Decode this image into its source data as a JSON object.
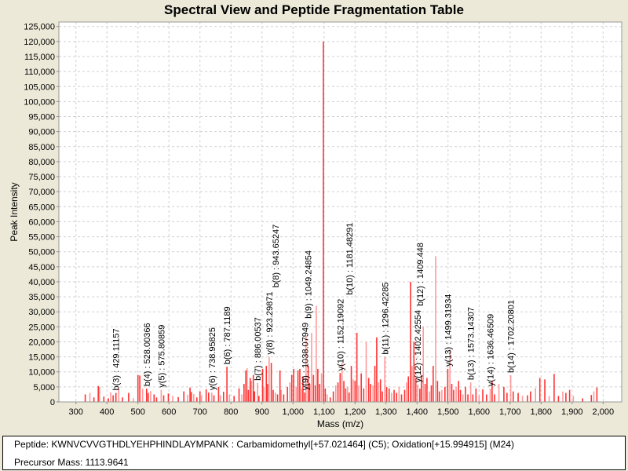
{
  "chart_data": {
    "type": "bar",
    "title": "Spectral View and Peptide Fragmentation Table",
    "xlabel": "Mass (m/z)",
    "ylabel": "Peak Intensity",
    "xlim": [
      245,
      2060
    ],
    "ylim": [
      0,
      126500
    ],
    "xticks": [
      300,
      400,
      500,
      600,
      700,
      800,
      900,
      1000,
      1100,
      1200,
      1300,
      1400,
      1500,
      1600,
      1700,
      1800,
      1900,
      2000
    ],
    "yticks": [
      0,
      5000,
      10000,
      15000,
      20000,
      25000,
      30000,
      35000,
      40000,
      45000,
      50000,
      55000,
      60000,
      65000,
      70000,
      75000,
      80000,
      85000,
      90000,
      95000,
      100000,
      105000,
      110000,
      115000,
      120000,
      125000
    ],
    "grid": true,
    "peak_color": "#ff3333",
    "peak_color_light": "#ff9999",
    "peaks": [
      [
        330,
        2500
      ],
      [
        345,
        3000
      ],
      [
        358,
        1500
      ],
      [
        372,
        5300
      ],
      [
        376,
        5000
      ],
      [
        390,
        1800
      ],
      [
        405,
        1200
      ],
      [
        412,
        3200
      ],
      [
        420,
        2200
      ],
      [
        429,
        3000
      ],
      [
        438,
        4500
      ],
      [
        450,
        1500
      ],
      [
        470,
        3000
      ],
      [
        485,
        1200
      ],
      [
        500,
        9000
      ],
      [
        506,
        8800
      ],
      [
        515,
        4400
      ],
      [
        528,
        4400
      ],
      [
        533,
        3000
      ],
      [
        541,
        3600
      ],
      [
        552,
        2500
      ],
      [
        560,
        1500
      ],
      [
        575,
        4000
      ],
      [
        583,
        2200
      ],
      [
        598,
        2800
      ],
      [
        612,
        2000
      ],
      [
        630,
        1600
      ],
      [
        648,
        3500
      ],
      [
        660,
        2400
      ],
      [
        668,
        4800
      ],
      [
        672,
        3300
      ],
      [
        680,
        2600
      ],
      [
        690,
        1500
      ],
      [
        700,
        3500
      ],
      [
        705,
        2200
      ],
      [
        720,
        4200
      ],
      [
        728,
        3100
      ],
      [
        738,
        3100
      ],
      [
        745,
        2200
      ],
      [
        760,
        5000
      ],
      [
        766,
        2200
      ],
      [
        776,
        3400
      ],
      [
        787,
        11700
      ],
      [
        795,
        2500
      ],
      [
        810,
        2000
      ],
      [
        826,
        4500
      ],
      [
        835,
        2500
      ],
      [
        842,
        6000
      ],
      [
        848,
        10500
      ],
      [
        852,
        11200
      ],
      [
        856,
        4000
      ],
      [
        862,
        8000
      ],
      [
        866,
        7000
      ],
      [
        872,
        9000
      ],
      [
        876,
        3500
      ],
      [
        886,
        6300
      ],
      [
        890,
        2000
      ],
      [
        902,
        11000
      ],
      [
        906,
        5000
      ],
      [
        914,
        12000
      ],
      [
        918,
        6000
      ],
      [
        923,
        15000
      ],
      [
        930,
        13000
      ],
      [
        936,
        4000
      ],
      [
        943,
        3100
      ],
      [
        950,
        2500
      ],
      [
        958,
        10500
      ],
      [
        962,
        4000
      ],
      [
        970,
        2500
      ],
      [
        982,
        5000
      ],
      [
        990,
        6500
      ],
      [
        996,
        9000
      ],
      [
        1002,
        11000
      ],
      [
        1010,
        5000
      ],
      [
        1016,
        10500
      ],
      [
        1022,
        11000
      ],
      [
        1028,
        4500
      ],
      [
        1032,
        8500
      ],
      [
        1038,
        3100
      ],
      [
        1042,
        22000
      ],
      [
        1049,
        12000
      ],
      [
        1054,
        6000
      ],
      [
        1060,
        23000
      ],
      [
        1066,
        9000
      ],
      [
        1072,
        5500
      ],
      [
        1075,
        32000
      ],
      [
        1080,
        11000
      ],
      [
        1086,
        6000
      ],
      [
        1092,
        9500
      ],
      [
        1098,
        120000
      ],
      [
        1104,
        4500
      ],
      [
        1110,
        2500
      ],
      [
        1120,
        1500
      ],
      [
        1130,
        3500
      ],
      [
        1138,
        5500
      ],
      [
        1145,
        6500
      ],
      [
        1152,
        9600
      ],
      [
        1158,
        13000
      ],
      [
        1164,
        7000
      ],
      [
        1170,
        4500
      ],
      [
        1176,
        5000
      ],
      [
        1181,
        3100
      ],
      [
        1188,
        12000
      ],
      [
        1194,
        7500
      ],
      [
        1200,
        7000
      ],
      [
        1206,
        23000
      ],
      [
        1212,
        5500
      ],
      [
        1220,
        9500
      ],
      [
        1228,
        4500
      ],
      [
        1236,
        20000
      ],
      [
        1244,
        8000
      ],
      [
        1250,
        6000
      ],
      [
        1258,
        5500
      ],
      [
        1264,
        12000
      ],
      [
        1270,
        21500
      ],
      [
        1276,
        6500
      ],
      [
        1282,
        7500
      ],
      [
        1288,
        3500
      ],
      [
        1296,
        15000
      ],
      [
        1302,
        5000
      ],
      [
        1310,
        4500
      ],
      [
        1318,
        3000
      ],
      [
        1326,
        4000
      ],
      [
        1334,
        3000
      ],
      [
        1342,
        5000
      ],
      [
        1350,
        2500
      ],
      [
        1360,
        4000
      ],
      [
        1366,
        6500
      ],
      [
        1372,
        8500
      ],
      [
        1379,
        40000
      ],
      [
        1384,
        12000
      ],
      [
        1390,
        20000
      ],
      [
        1396,
        8000
      ],
      [
        1402,
        5700
      ],
      [
        1409,
        4400
      ],
      [
        1414,
        9000
      ],
      [
        1420,
        25000
      ],
      [
        1426,
        6000
      ],
      [
        1432,
        8000
      ],
      [
        1440,
        3500
      ],
      [
        1446,
        5500
      ],
      [
        1452,
        12000
      ],
      [
        1460,
        48500
      ],
      [
        1466,
        7000
      ],
      [
        1472,
        3500
      ],
      [
        1480,
        4000
      ],
      [
        1490,
        5000
      ],
      [
        1499,
        11000
      ],
      [
        1506,
        17500
      ],
      [
        1512,
        6000
      ],
      [
        1518,
        4000
      ],
      [
        1526,
        5000
      ],
      [
        1534,
        7000
      ],
      [
        1540,
        4000
      ],
      [
        1548,
        2500
      ],
      [
        1556,
        5000
      ],
      [
        1564,
        2500
      ],
      [
        1573,
        6500
      ],
      [
        1580,
        2500
      ],
      [
        1590,
        4500
      ],
      [
        1600,
        2200
      ],
      [
        1612,
        4200
      ],
      [
        1624,
        2500
      ],
      [
        1636,
        4400
      ],
      [
        1642,
        7000
      ],
      [
        1650,
        2500
      ],
      [
        1664,
        6000
      ],
      [
        1680,
        5000
      ],
      [
        1690,
        3000
      ],
      [
        1702,
        8900
      ],
      [
        1710,
        3500
      ],
      [
        1726,
        3000
      ],
      [
        1740,
        2000
      ],
      [
        1756,
        2200
      ],
      [
        1766,
        3500
      ],
      [
        1782,
        4600
      ],
      [
        1796,
        8000
      ],
      [
        1812,
        7500
      ],
      [
        1826,
        2000
      ],
      [
        1842,
        9300
      ],
      [
        1856,
        2000
      ],
      [
        1870,
        3500
      ],
      [
        1880,
        3000
      ],
      [
        1892,
        4000
      ],
      [
        1904,
        2000
      ],
      [
        1934,
        1200
      ],
      [
        1962,
        2300
      ],
      [
        1970,
        3500
      ],
      [
        1980,
        4800
      ]
    ],
    "annotations": [
      {
        "mass": 429.11157,
        "intensity": 3000,
        "label": "b(3) : 429.11157"
      },
      {
        "mass": 528.00366,
        "intensity": 4400,
        "label": "b(4) : 528.00366"
      },
      {
        "mass": 575.80859,
        "intensity": 4000,
        "label": "y(5) : 575.80859"
      },
      {
        "mass": 738.95825,
        "intensity": 3100,
        "label": "y(6) : 738.95825"
      },
      {
        "mass": 787.1189,
        "intensity": 11700,
        "label": "b(6) : 787.1189"
      },
      {
        "mass": 886.00537,
        "intensity": 6300,
        "label": "b(7) : 886.00537"
      },
      {
        "mass": 923.29871,
        "intensity": 15000,
        "label": "y(8) : 923.29871"
      },
      {
        "mass": 943.65247,
        "intensity": 3100,
        "label": "b(8) : 943.65247"
      },
      {
        "mass": 1038.07949,
        "intensity": 3100,
        "label": "y(9) : 1038.07949"
      },
      {
        "mass": 1049.24854,
        "intensity": 12000,
        "label": "b(9) : 1049.24854"
      },
      {
        "mass": 1152.19092,
        "intensity": 9600,
        "label": "y(10) : 1152.19092"
      },
      {
        "mass": 1181.48291,
        "intensity": 3100,
        "label": "b(10) : 1181.48291"
      },
      {
        "mass": 1296.42285,
        "intensity": 15000,
        "label": "b(11) : 1296.42285"
      },
      {
        "mass": 1402.42554,
        "intensity": 5700,
        "label": "y(12) : 1402.42554"
      },
      {
        "mass": 1409.448,
        "intensity": 4400,
        "label": "b(12) : 1409.448"
      },
      {
        "mass": 1499.31934,
        "intensity": 11000,
        "label": "y(13) : 1499.31934"
      },
      {
        "mass": 1573.14307,
        "intensity": 6500,
        "label": "b(13) : 1573.14307"
      },
      {
        "mass": 1636.46509,
        "intensity": 4400,
        "label": "y(14) : 1636.46509"
      },
      {
        "mass": 1702.20801,
        "intensity": 8900,
        "label": "b(14) : 1702.20801"
      }
    ]
  },
  "footer": {
    "peptide": "Peptide: KWNVCVVGTHDLYEHPHINDLAYMPANK : Carbamidomethyl[+57.021464] (C5); Oxidation[+15.994915] (M24)",
    "precursor": "Precursor Mass: 1113.9641"
  }
}
